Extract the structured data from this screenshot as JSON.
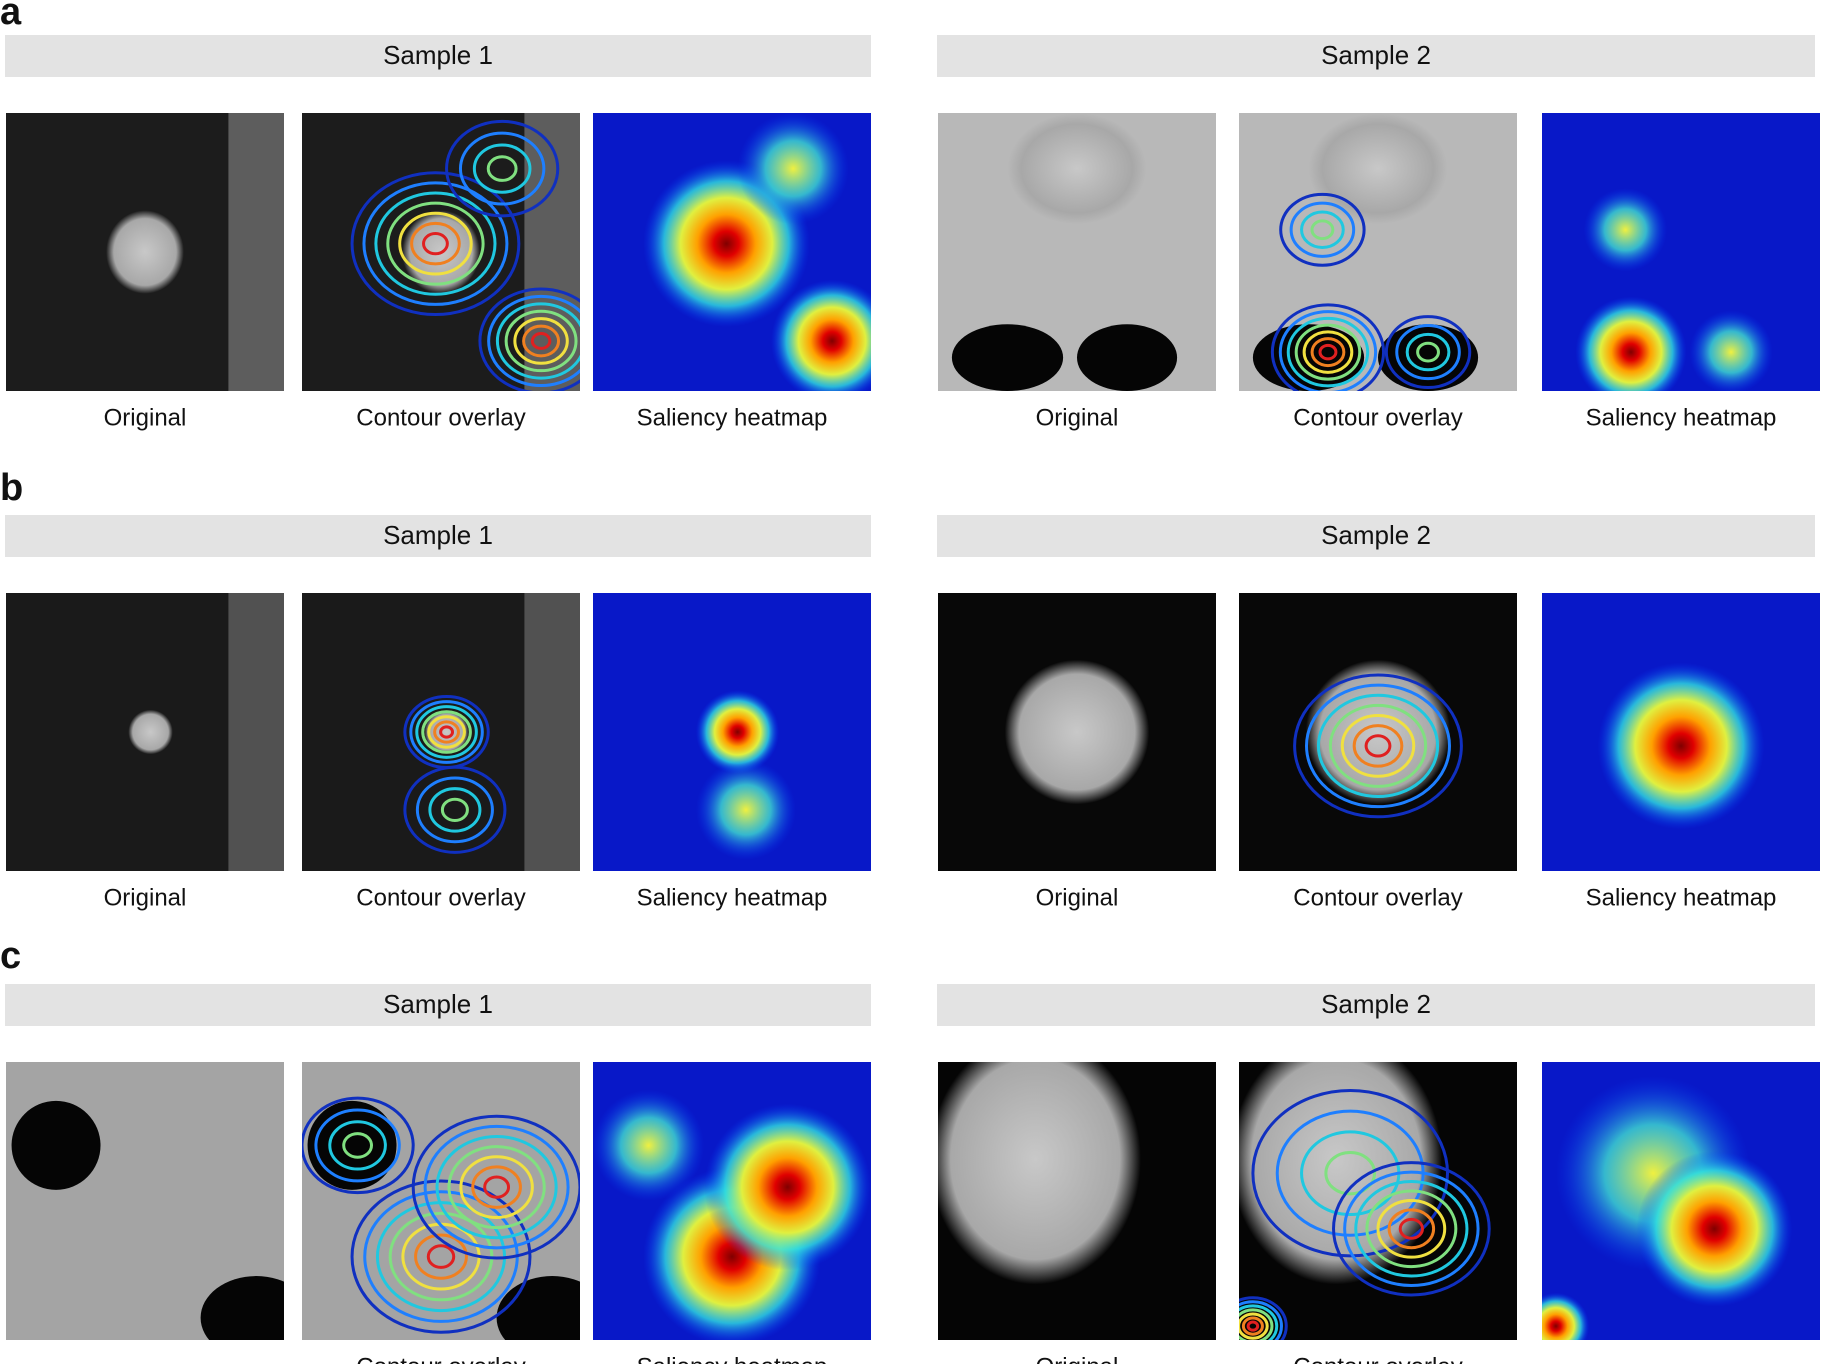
{
  "panels": [
    {
      "label": "a",
      "samples": [
        {
          "title": "Sample 1",
          "captions": [
            "Original",
            "Contour overlay",
            "Saliency heatmap"
          ]
        },
        {
          "title": "Sample 2",
          "captions": [
            "Original",
            "Contour overlay",
            "Saliency heatmap"
          ]
        }
      ]
    },
    {
      "label": "b",
      "samples": [
        {
          "title": "Sample 1",
          "captions": [
            "Original",
            "Contour overlay",
            "Saliency heatmap"
          ]
        },
        {
          "title": "Sample 2",
          "captions": [
            "Original",
            "Contour overlay",
            "Saliency heatmap"
          ]
        }
      ]
    },
    {
      "label": "c",
      "samples": [
        {
          "title": "Sample 1",
          "captions": [
            null,
            "Contour overlay",
            "Saliency heatmap"
          ]
        },
        {
          "title": "Sample 2",
          "captions": [
            "Original",
            "Contour overlay",
            null
          ]
        }
      ]
    }
  ]
}
